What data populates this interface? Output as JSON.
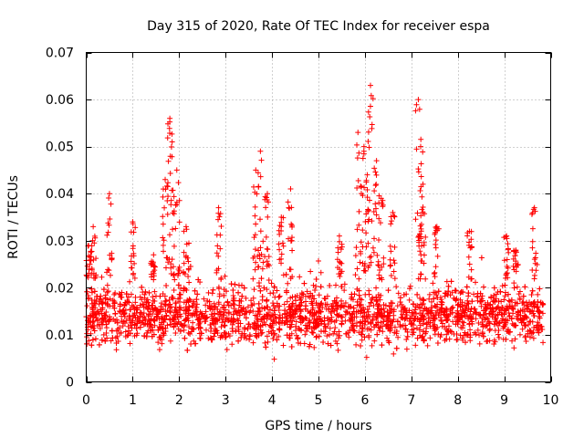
{
  "chart_data": {
    "type": "scatter",
    "title": "Day 315 of 2020, Rate Of TEC Index for receiver espa",
    "xlabel": "GPS time / hours",
    "ylabel": "ROTI / TECUs",
    "xlim": [
      0,
      10
    ],
    "ylim": [
      0,
      0.07
    ],
    "xticks": [
      "0",
      "1",
      "2",
      "3",
      "4",
      "5",
      "6",
      "7",
      "8",
      "9",
      "10"
    ],
    "yticks": [
      "0",
      "0.01",
      "0.02",
      "0.03",
      "0.04",
      "0.05",
      "0.06",
      "0.07"
    ],
    "grid": true,
    "marker": "plus",
    "color": "#ff0000",
    "x_range_data": [
      0,
      9.85
    ],
    "baseline_band": [
      0.004,
      0.024
    ],
    "spikes": [
      {
        "x": 0.05,
        "peak": 0.029
      },
      {
        "x": 0.15,
        "peak": 0.033
      },
      {
        "x": 0.5,
        "peak": 0.04
      },
      {
        "x": 1.0,
        "peak": 0.034
      },
      {
        "x": 1.45,
        "peak": 0.027
      },
      {
        "x": 1.7,
        "peak": 0.043
      },
      {
        "x": 1.8,
        "peak": 0.056
      },
      {
        "x": 1.85,
        "peak": 0.051
      },
      {
        "x": 1.95,
        "peak": 0.045
      },
      {
        "x": 2.15,
        "peak": 0.033
      },
      {
        "x": 2.85,
        "peak": 0.037
      },
      {
        "x": 3.65,
        "peak": 0.045
      },
      {
        "x": 3.75,
        "peak": 0.049
      },
      {
        "x": 3.9,
        "peak": 0.04
      },
      {
        "x": 4.2,
        "peak": 0.035
      },
      {
        "x": 4.4,
        "peak": 0.041
      },
      {
        "x": 5.45,
        "peak": 0.031
      },
      {
        "x": 5.85,
        "peak": 0.053
      },
      {
        "x": 5.98,
        "peak": 0.05
      },
      {
        "x": 6.05,
        "peak": 0.044
      },
      {
        "x": 6.12,
        "peak": 0.063
      },
      {
        "x": 6.25,
        "peak": 0.047
      },
      {
        "x": 6.35,
        "peak": 0.039
      },
      {
        "x": 6.6,
        "peak": 0.036
      },
      {
        "x": 7.15,
        "peak": 0.06
      },
      {
        "x": 7.2,
        "peak": 0.05
      },
      {
        "x": 7.25,
        "peak": 0.042
      },
      {
        "x": 7.55,
        "peak": 0.033
      },
      {
        "x": 8.25,
        "peak": 0.032
      },
      {
        "x": 9.05,
        "peak": 0.031
      },
      {
        "x": 9.25,
        "peak": 0.028
      },
      {
        "x": 9.65,
        "peak": 0.037
      }
    ]
  }
}
